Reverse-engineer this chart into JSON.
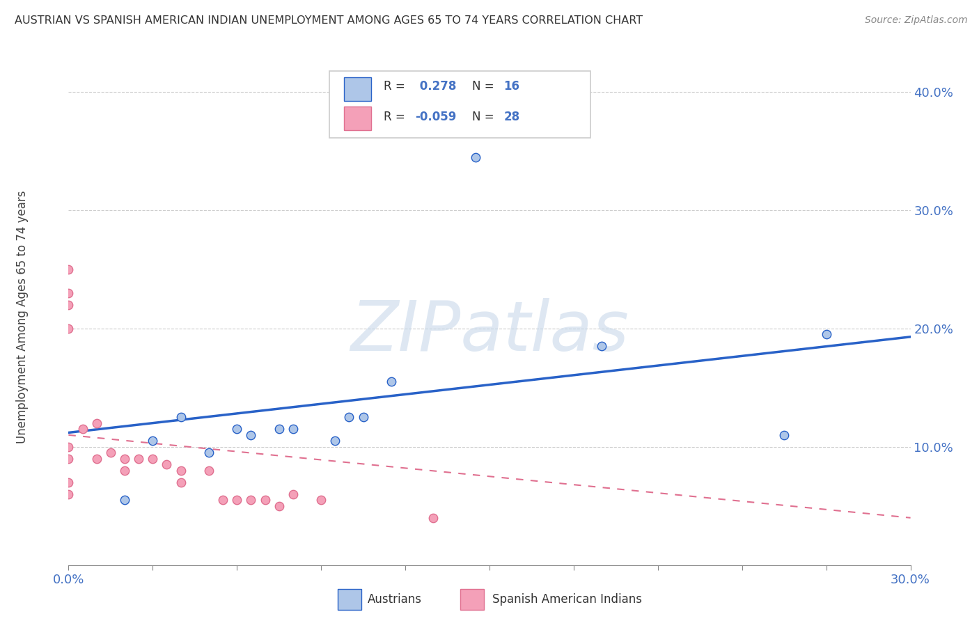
{
  "title": "AUSTRIAN VS SPANISH AMERICAN INDIAN UNEMPLOYMENT AMONG AGES 65 TO 74 YEARS CORRELATION CHART",
  "source": "Source: ZipAtlas.com",
  "ylabel": "Unemployment Among Ages 65 to 74 years",
  "legend_austrians": "Austrians",
  "legend_spanish": "Spanish American Indians",
  "R_austrians": 0.278,
  "N_austrians": 16,
  "R_spanish": -0.059,
  "N_spanish": 28,
  "color_austrians": "#aec6e8",
  "color_spanish": "#f4a0b8",
  "color_line_austrians": "#2962c8",
  "color_line_spanish": "#e07090",
  "color_text_blue": "#4472c4",
  "background_color": "#ffffff",
  "austrians_x": [
    0.02,
    0.03,
    0.04,
    0.05,
    0.06,
    0.065,
    0.075,
    0.08,
    0.095,
    0.1,
    0.105,
    0.115,
    0.145,
    0.19,
    0.255,
    0.27
  ],
  "austrians_y": [
    0.055,
    0.105,
    0.125,
    0.095,
    0.115,
    0.11,
    0.115,
    0.115,
    0.105,
    0.125,
    0.125,
    0.155,
    0.345,
    0.185,
    0.11,
    0.195
  ],
  "spanish_x": [
    0.0,
    0.0,
    0.0,
    0.0,
    0.0,
    0.0,
    0.0,
    0.0,
    0.005,
    0.01,
    0.01,
    0.015,
    0.02,
    0.02,
    0.025,
    0.03,
    0.035,
    0.04,
    0.04,
    0.05,
    0.055,
    0.06,
    0.065,
    0.07,
    0.075,
    0.08,
    0.09,
    0.13
  ],
  "spanish_y": [
    0.25,
    0.23,
    0.22,
    0.2,
    0.1,
    0.09,
    0.07,
    0.06,
    0.115,
    0.12,
    0.09,
    0.095,
    0.09,
    0.08,
    0.09,
    0.09,
    0.085,
    0.08,
    0.07,
    0.08,
    0.055,
    0.055,
    0.055,
    0.055,
    0.05,
    0.06,
    0.055,
    0.04
  ],
  "xlim": [
    0.0,
    0.3
  ],
  "ylim": [
    0.0,
    0.42
  ],
  "trend_austrians_x0": 0.0,
  "trend_austrians_x1": 0.3,
  "trend_austrians_y0": 0.112,
  "trend_austrians_y1": 0.193,
  "trend_spanish_x0": 0.0,
  "trend_spanish_x1": 0.3,
  "trend_spanish_y0": 0.11,
  "trend_spanish_y1": 0.04
}
